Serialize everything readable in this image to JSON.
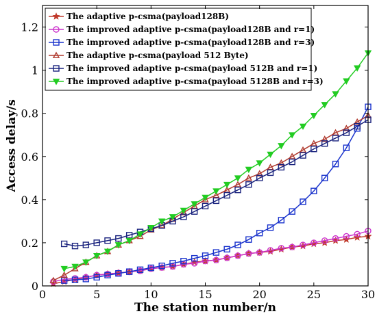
{
  "chart_data": {
    "type": "line",
    "xlabel": "The station number/n",
    "ylabel": "Access delay/s",
    "xlim": [
      0,
      30
    ],
    "ylim": [
      0,
      1.3
    ],
    "xticks": [
      0,
      5,
      10,
      15,
      20,
      25,
      30
    ],
    "yticks": [
      0,
      0.2,
      0.4,
      0.6,
      0.8,
      1,
      1.2
    ],
    "ytick_labels": [
      "0",
      "0.2",
      "0.4",
      "0.6",
      "0.8",
      "1",
      "1.2"
    ],
    "grid": false,
    "legend_position": "top-left",
    "series": [
      {
        "name": "The adaptive p-csma(payload128B)",
        "color": "#c0392b",
        "marker": "star",
        "x": [
          1,
          2,
          3,
          4,
          5,
          6,
          7,
          8,
          9,
          10,
          11,
          12,
          13,
          14,
          15,
          16,
          17,
          18,
          19,
          20,
          21,
          22,
          23,
          24,
          25,
          26,
          27,
          28,
          29,
          30
        ],
        "y": [
          0.01,
          0.02,
          0.03,
          0.04,
          0.05,
          0.055,
          0.06,
          0.065,
          0.07,
          0.08,
          0.085,
          0.09,
          0.1,
          0.11,
          0.115,
          0.12,
          0.13,
          0.14,
          0.15,
          0.155,
          0.16,
          0.17,
          0.18,
          0.185,
          0.195,
          0.2,
          0.21,
          0.215,
          0.225,
          0.23
        ]
      },
      {
        "name": "The improved adaptive p-csma(payload128B and r=1)",
        "color": "#cc33cc",
        "marker": "circle",
        "x": [
          1,
          2,
          3,
          4,
          5,
          6,
          7,
          8,
          9,
          10,
          11,
          12,
          13,
          14,
          15,
          16,
          17,
          18,
          19,
          20,
          21,
          22,
          23,
          24,
          25,
          26,
          27,
          28,
          29,
          30
        ],
        "y": [
          0.02,
          0.03,
          0.035,
          0.04,
          0.05,
          0.055,
          0.06,
          0.065,
          0.07,
          0.08,
          0.085,
          0.09,
          0.1,
          0.105,
          0.115,
          0.12,
          0.13,
          0.14,
          0.15,
          0.155,
          0.165,
          0.175,
          0.18,
          0.19,
          0.2,
          0.21,
          0.22,
          0.23,
          0.24,
          0.255
        ]
      },
      {
        "name": "The improved adaptive p-csma(payload128B  and r=3)",
        "color": "#1a33cc",
        "marker": "square",
        "x": [
          2,
          3,
          4,
          5,
          6,
          7,
          8,
          9,
          10,
          11,
          12,
          13,
          14,
          15,
          16,
          17,
          18,
          19,
          20,
          21,
          22,
          23,
          24,
          25,
          26,
          27,
          28,
          29,
          30
        ],
        "y": [
          0.025,
          0.028,
          0.032,
          0.04,
          0.05,
          0.058,
          0.066,
          0.075,
          0.084,
          0.093,
          0.105,
          0.115,
          0.128,
          0.14,
          0.155,
          0.17,
          0.19,
          0.215,
          0.245,
          0.27,
          0.305,
          0.345,
          0.39,
          0.44,
          0.5,
          0.565,
          0.64,
          0.73,
          0.83
        ]
      },
      {
        "name": "The adaptive p-csma(payload 512 Byte)",
        "color": "#b03a2e",
        "marker": "triangle-up",
        "x": [
          1,
          2,
          3,
          4,
          5,
          6,
          7,
          8,
          9,
          10,
          11,
          12,
          13,
          14,
          15,
          16,
          17,
          18,
          19,
          20,
          21,
          22,
          23,
          24,
          25,
          26,
          27,
          28,
          29,
          30
        ],
        "y": [
          0.025,
          0.05,
          0.08,
          0.11,
          0.14,
          0.16,
          0.19,
          0.21,
          0.23,
          0.26,
          0.28,
          0.31,
          0.34,
          0.37,
          0.4,
          0.42,
          0.445,
          0.47,
          0.5,
          0.52,
          0.55,
          0.57,
          0.6,
          0.63,
          0.66,
          0.68,
          0.71,
          0.73,
          0.76,
          0.79
        ]
      },
      {
        "name": "The improved adaptive p-csma(payload 512B and r=1)",
        "color": "#1a237e",
        "marker": "square",
        "x": [
          2,
          3,
          4,
          5,
          6,
          7,
          8,
          9,
          10,
          11,
          12,
          13,
          14,
          15,
          16,
          17,
          18,
          19,
          20,
          21,
          22,
          23,
          24,
          25,
          26,
          27,
          28,
          29,
          30
        ],
        "y": [
          0.195,
          0.185,
          0.19,
          0.2,
          0.21,
          0.22,
          0.235,
          0.25,
          0.265,
          0.28,
          0.3,
          0.32,
          0.345,
          0.37,
          0.395,
          0.42,
          0.445,
          0.47,
          0.5,
          0.525,
          0.55,
          0.575,
          0.605,
          0.635,
          0.66,
          0.685,
          0.71,
          0.74,
          0.77
        ]
      },
      {
        "name": "The improved adaptive p-csma(payload 5128B and r=3)",
        "color": "#22cc22",
        "marker": "triangle-down",
        "x": [
          2,
          3,
          4,
          5,
          6,
          7,
          8,
          9,
          10,
          11,
          12,
          13,
          14,
          15,
          16,
          17,
          18,
          19,
          20,
          21,
          22,
          23,
          24,
          25,
          26,
          27,
          28,
          29,
          30
        ],
        "y": [
          0.08,
          0.09,
          0.11,
          0.14,
          0.16,
          0.19,
          0.21,
          0.24,
          0.27,
          0.3,
          0.32,
          0.35,
          0.38,
          0.41,
          0.44,
          0.47,
          0.5,
          0.54,
          0.57,
          0.61,
          0.65,
          0.7,
          0.74,
          0.79,
          0.84,
          0.89,
          0.95,
          1.01,
          1.08
        ]
      }
    ]
  }
}
